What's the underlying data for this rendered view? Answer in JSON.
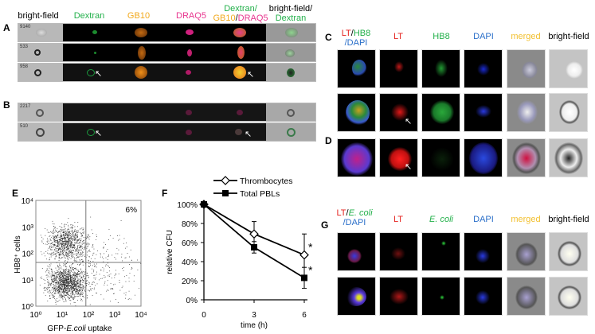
{
  "panel_a": {
    "label": "A",
    "headers": {
      "bright_field": "bright-field",
      "dextran": "Dextran",
      "gb10": "GB10",
      "draq5": "DRAQ5",
      "merged_1": "Dextran/",
      "merged_2a": "GB10",
      "merged_2b": "/",
      "merged_2c": "DRAQ5",
      "bfd_1": "bright-field/",
      "bfd_2": "Dextran"
    },
    "rows": [
      "9140",
      "533",
      "958"
    ]
  },
  "panel_b": {
    "label": "B",
    "rows": [
      "2217",
      "510"
    ]
  },
  "panel_c": {
    "label": "C",
    "headers": {
      "h1a": "LT",
      "h1b": "/",
      "h1c": "HB8",
      "h1d": "/DAPI",
      "lt": "LT",
      "hb8": "HB8",
      "dapi": "DAPI",
      "merged": "merged",
      "bright_field": "bright-field"
    }
  },
  "panel_d": {
    "label": "D"
  },
  "panel_e": {
    "label": "E"
  },
  "panel_f": {
    "label": "F"
  },
  "panel_g": {
    "label": "G",
    "headers": {
      "h1a": "LT",
      "h1b": "/",
      "h1c": "E. coli",
      "h1d": "/DAPI",
      "lt": "LT",
      "ecoli": "E. coli",
      "dapi": "DAPI",
      "merged": "merged",
      "bright_field": "bright-field"
    }
  },
  "arrow_glyph": "↖",
  "chart_data": [
    {
      "type": "scatter",
      "panel": "E",
      "xlabel_a": "GFP-",
      "xlabel_b": "E.coli",
      "xlabel_c": " uptake",
      "ylabel": "HB8⁺ cells",
      "x_scale": "log",
      "y_scale": "log",
      "xlim": [
        1,
        10000
      ],
      "ylim": [
        1,
        10000
      ],
      "x_ticks": [
        "10⁰",
        "10¹",
        "10²",
        "10³",
        "10⁴"
      ],
      "y_ticks": [
        "10⁰",
        "10¹",
        "10²",
        "10³",
        "10⁴"
      ],
      "gates": {
        "x": 80,
        "y": 45
      },
      "annotation": "6%",
      "populations": [
        {
          "x": 15,
          "y": 250,
          "n": 900
        },
        {
          "x": 15,
          "y": 8,
          "n": 1300
        },
        {
          "x": 200,
          "y": 30,
          "n": 300
        }
      ]
    },
    {
      "type": "line",
      "panel": "F",
      "xlabel": "time (h)",
      "ylabel": "relative CFU",
      "x": [
        0,
        3,
        6
      ],
      "x_ticks": [
        "0",
        "3",
        "6"
      ],
      "ylim": [
        0,
        100
      ],
      "y_ticks": [
        "0%",
        "20%",
        "40%",
        "60%",
        "80%",
        "100%"
      ],
      "series": [
        {
          "name": "Thrombocytes",
          "values": [
            100,
            69,
            47
          ],
          "errors": [
            0,
            13,
            22
          ],
          "marker": "open-diamond",
          "significance": [
            "",
            "",
            "*"
          ]
        },
        {
          "name": "Total PBLs",
          "values": [
            100,
            55,
            23
          ],
          "errors": [
            0,
            6,
            11
          ],
          "marker": "filled-square",
          "significance": [
            "",
            "",
            "*"
          ]
        }
      ],
      "legend": "top"
    }
  ]
}
